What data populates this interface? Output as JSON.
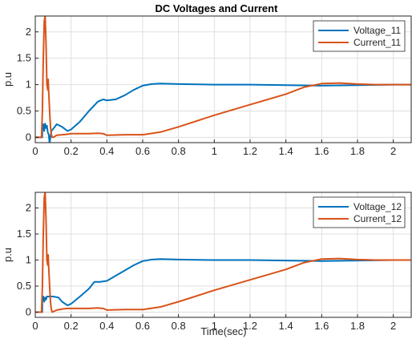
{
  "colors": {
    "voltage": "#0072BD",
    "current": "#D95319",
    "grid": "#dfdfdf",
    "axis": "#262626"
  },
  "chart_data": [
    {
      "type": "line",
      "title": "DC Voltages and Current",
      "xlabel": "",
      "ylabel": "p.u",
      "xlim": [
        0,
        2.1
      ],
      "ylim": [
        -0.1,
        2.3
      ],
      "xticks": [
        0,
        0.2,
        0.4,
        0.6,
        0.8,
        1,
        1.2,
        1.4,
        1.6,
        1.8,
        2
      ],
      "yticks": [
        0,
        0.5,
        1,
        1.5,
        2
      ],
      "grid": true,
      "legend": "top-right",
      "series": [
        {
          "name": "Voltage_11",
          "color": "#0072BD",
          "x": [
            0,
            0.039,
            0.04,
            0.045,
            0.05,
            0.055,
            0.06,
            0.065,
            0.07,
            0.075,
            0.08,
            0.085,
            0.09,
            0.1,
            0.12,
            0.15,
            0.18,
            0.2,
            0.25,
            0.3,
            0.35,
            0.38,
            0.4,
            0.45,
            0.5,
            0.55,
            0.6,
            0.65,
            0.7,
            0.8,
            1.0,
            1.2,
            1.4,
            1.6,
            1.8,
            2.0,
            2.1
          ],
          "y": [
            0,
            0,
            0.18,
            0.25,
            0.12,
            0.26,
            0.18,
            0.22,
            0.1,
            0.05,
            -0.12,
            0.02,
            0.12,
            0.16,
            0.25,
            0.2,
            0.12,
            0.15,
            0.3,
            0.5,
            0.68,
            0.72,
            0.7,
            0.72,
            0.8,
            0.9,
            0.98,
            1.01,
            1.02,
            1.01,
            1.0,
            1.0,
            0.99,
            0.98,
            0.99,
            1.0,
            1.0
          ]
        },
        {
          "name": "Current_11",
          "color": "#D95319",
          "x": [
            0,
            0.035,
            0.04,
            0.045,
            0.05,
            0.055,
            0.06,
            0.065,
            0.07,
            0.072,
            0.075,
            0.08,
            0.085,
            0.09,
            0.095,
            0.1,
            0.12,
            0.15,
            0.18,
            0.2,
            0.3,
            0.35,
            0.38,
            0.4,
            0.5,
            0.6,
            0.62,
            0.7,
            0.8,
            1.0,
            1.2,
            1.4,
            1.5,
            1.6,
            1.7,
            1.8,
            1.9,
            2.0,
            2.1
          ],
          "y": [
            0,
            0,
            0.5,
            1.5,
            2.2,
            2.3,
            1.8,
            1.0,
            0.9,
            1.1,
            0.85,
            0.5,
            0.2,
            0.05,
            0.0,
            0.0,
            0.04,
            0.05,
            0.06,
            0.07,
            0.07,
            0.08,
            0.07,
            0.04,
            0.05,
            0.05,
            0.06,
            0.1,
            0.2,
            0.42,
            0.62,
            0.82,
            0.95,
            1.02,
            1.03,
            1.01,
            1.0,
            1.0,
            1.0
          ]
        }
      ]
    },
    {
      "type": "line",
      "title": "",
      "xlabel": "Time(sec)",
      "ylabel": "p.u",
      "xlim": [
        0,
        2.1
      ],
      "ylim": [
        -0.1,
        2.3
      ],
      "xticks": [
        0,
        0.2,
        0.4,
        0.6,
        0.8,
        1,
        1.2,
        1.4,
        1.6,
        1.8,
        2
      ],
      "yticks": [
        0,
        0.5,
        1,
        1.5,
        2
      ],
      "grid": true,
      "legend": "top-right",
      "series": [
        {
          "name": "Voltage_12",
          "color": "#0072BD",
          "x": [
            0,
            0.039,
            0.04,
            0.045,
            0.05,
            0.055,
            0.06,
            0.065,
            0.07,
            0.1,
            0.13,
            0.15,
            0.18,
            0.2,
            0.25,
            0.3,
            0.33,
            0.36,
            0.4,
            0.45,
            0.5,
            0.55,
            0.6,
            0.65,
            0.7,
            0.8,
            1.0,
            1.2,
            1.4,
            1.6,
            1.8,
            2.0,
            2.1
          ],
          "y": [
            0,
            0,
            0.25,
            0.3,
            0.2,
            0.28,
            0.24,
            0.3,
            0.3,
            0.3,
            0.28,
            0.2,
            0.13,
            0.16,
            0.3,
            0.45,
            0.58,
            0.58,
            0.6,
            0.7,
            0.8,
            0.9,
            0.98,
            1.01,
            1.02,
            1.01,
            1.0,
            1.0,
            0.99,
            0.98,
            0.99,
            1.0,
            1.0
          ]
        },
        {
          "name": "Current_12",
          "color": "#D95319",
          "x": [
            0,
            0.035,
            0.04,
            0.045,
            0.05,
            0.055,
            0.06,
            0.065,
            0.07,
            0.072,
            0.075,
            0.08,
            0.085,
            0.09,
            0.095,
            0.12,
            0.15,
            0.18,
            0.2,
            0.3,
            0.35,
            0.38,
            0.4,
            0.5,
            0.6,
            0.62,
            0.7,
            0.8,
            1.0,
            1.2,
            1.4,
            1.5,
            1.6,
            1.7,
            1.8,
            1.9,
            2.0,
            2.1
          ],
          "y": [
            0,
            0,
            0.5,
            1.5,
            2.2,
            2.3,
            1.8,
            1.0,
            0.9,
            1.1,
            0.85,
            0.5,
            0.2,
            0.05,
            0.0,
            0.04,
            0.06,
            0.07,
            0.07,
            0.07,
            0.08,
            0.07,
            0.04,
            0.05,
            0.05,
            0.06,
            0.1,
            0.2,
            0.42,
            0.62,
            0.82,
            0.95,
            1.02,
            1.03,
            1.01,
            1.0,
            1.0,
            1.0
          ]
        }
      ]
    }
  ]
}
